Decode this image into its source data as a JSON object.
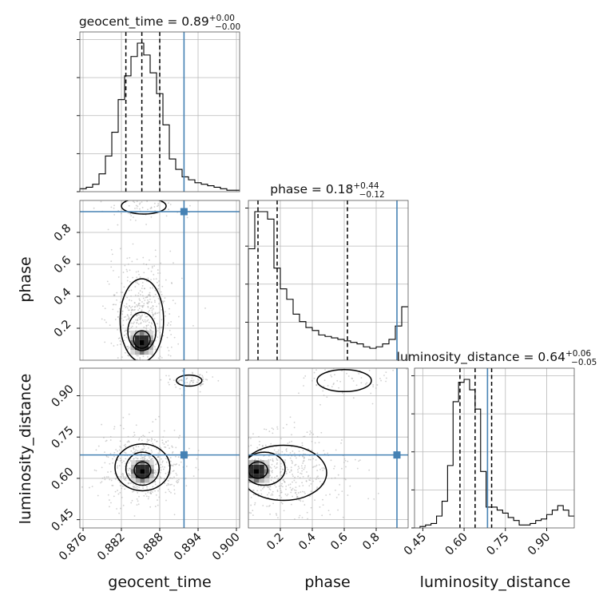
{
  "chart_data": {
    "type": "corner",
    "parameters": [
      "geocent_time",
      "phase",
      "luminosity_distance"
    ],
    "titles": {
      "geocent_time": {
        "name": "geocent_time",
        "median": "0.89",
        "plus": "+0.00",
        "minus": "−0.00"
      },
      "phase": {
        "name": "phase",
        "median": "0.18",
        "plus": "+0.44",
        "minus": "−0.12"
      },
      "luminosity_distance": {
        "name": "luminosity_distance",
        "median": "0.64",
        "plus": "+0.06",
        "minus": "−0.05"
      }
    },
    "ranges": {
      "geocent_time": [
        0.8755,
        0.9005
      ],
      "phase": [
        0.0,
        1.0
      ],
      "luminosity_distance": [
        0.42,
        1.0
      ]
    },
    "ticks": {
      "geocent_time": [
        "0.876",
        "0.882",
        "0.888",
        "0.894",
        "0.900"
      ],
      "phase": [
        "0.2",
        "0.4",
        "0.6",
        "0.8"
      ],
      "luminosity_distance": [
        "0.45",
        "0.60",
        "0.75",
        "0.90"
      ]
    },
    "truths": {
      "geocent_time": 0.8918,
      "phase": 0.93,
      "luminosity_distance": 0.685
    },
    "quantiles": {
      "geocent_time": [
        0.8827,
        0.8852,
        0.888
      ],
      "phase": [
        0.06,
        0.18,
        0.62
      ],
      "luminosity_distance": [
        0.585,
        0.64,
        0.7
      ]
    },
    "histograms": {
      "geocent_time": {
        "bin_edges": [
          0.8755,
          0.8765,
          0.8775,
          0.8785,
          0.8795,
          0.8805,
          0.8815,
          0.8825,
          0.8835,
          0.8845,
          0.8855,
          0.8865,
          0.8875,
          0.8885,
          0.8895,
          0.8905,
          0.8915,
          0.8925,
          0.8935,
          0.8945,
          0.8955,
          0.8965,
          0.8975,
          0.8985,
          0.8995,
          0.9005
        ],
        "counts": [
          2,
          3,
          5,
          12,
          24,
          40,
          62,
          78,
          91,
          100,
          92,
          80,
          66,
          45,
          22,
          15,
          10,
          8,
          6,
          5,
          4,
          3,
          2,
          1,
          1
        ]
      },
      "phase": {
        "bin_edges": [
          0.0,
          0.04,
          0.08,
          0.12,
          0.16,
          0.2,
          0.24,
          0.28,
          0.32,
          0.36,
          0.4,
          0.44,
          0.48,
          0.52,
          0.56,
          0.6,
          0.64,
          0.68,
          0.72,
          0.76,
          0.8,
          0.84,
          0.88,
          0.92,
          0.96,
          1.0
        ],
        "counts": [
          75,
          100,
          100,
          95,
          62,
          48,
          41,
          31,
          26,
          22,
          20,
          17,
          16,
          15,
          14,
          13,
          12,
          11,
          9,
          8,
          9,
          11,
          14,
          23,
          36
        ]
      },
      "luminosity_distance": {
        "bin_edges": [
          0.42,
          0.44,
          0.46,
          0.48,
          0.5,
          0.52,
          0.54,
          0.56,
          0.58,
          0.6,
          0.62,
          0.64,
          0.66,
          0.68,
          0.7,
          0.72,
          0.74,
          0.76,
          0.78,
          0.8,
          0.82,
          0.84,
          0.86,
          0.88,
          0.9,
          0.92,
          0.94,
          0.96,
          0.98,
          1.0
        ],
        "counts": [
          0,
          1,
          2,
          3,
          8,
          18,
          42,
          85,
          98,
          100,
          93,
          80,
          38,
          14,
          14,
          12,
          10,
          7,
          5,
          2,
          2,
          3,
          5,
          6,
          9,
          12,
          15,
          12,
          8
        ]
      }
    },
    "pairs": [
      {
        "x": "geocent_time",
        "y": "phase",
        "mode": [
          0.8852,
          0.11
        ],
        "levels": [
          {
            "center": [
              0.8852,
              0.13
            ],
            "half_width": [
              0.0013,
              0.055
            ]
          },
          {
            "center": [
              0.8852,
              0.18
            ],
            "half_width": [
              0.0022,
              0.12
            ]
          },
          {
            "center": [
              0.8852,
              0.25
            ],
            "half_width": [
              0.0034,
              0.26
            ]
          }
        ],
        "extra_contours": [
          {
            "center": [
              0.8855,
              0.965
            ],
            "half_width": [
              0.0035,
              0.05
            ]
          }
        ]
      },
      {
        "x": "geocent_time",
        "y": "luminosity_distance",
        "mode": [
          0.8853,
          0.625
        ],
        "levels": [
          {
            "center": [
              0.8853,
              0.63
            ],
            "half_width": [
              0.0013,
              0.03
            ]
          },
          {
            "center": [
              0.8853,
              0.635
            ],
            "half_width": [
              0.0026,
              0.06
            ]
          },
          {
            "center": [
              0.8853,
              0.64
            ],
            "half_width": [
              0.0043,
              0.085
            ]
          }
        ],
        "extra_contours": [
          {
            "center": [
              0.8926,
              0.955
            ],
            "half_width": [
              0.002,
              0.02
            ]
          }
        ]
      },
      {
        "x": "phase",
        "y": "luminosity_distance",
        "mode": [
          0.05,
          0.625
        ],
        "levels": [
          {
            "center": [
              0.06,
              0.63
            ],
            "half_width": [
              0.06,
              0.03
            ]
          },
          {
            "center": [
              0.1,
              0.635
            ],
            "half_width": [
              0.13,
              0.06
            ]
          },
          {
            "center": [
              0.22,
              0.62
            ],
            "half_width": [
              0.27,
              0.1
            ]
          }
        ],
        "extra_contours": [
          {
            "center": [
              0.6,
              0.955
            ],
            "half_width": [
              0.17,
              0.04
            ]
          }
        ]
      }
    ]
  }
}
